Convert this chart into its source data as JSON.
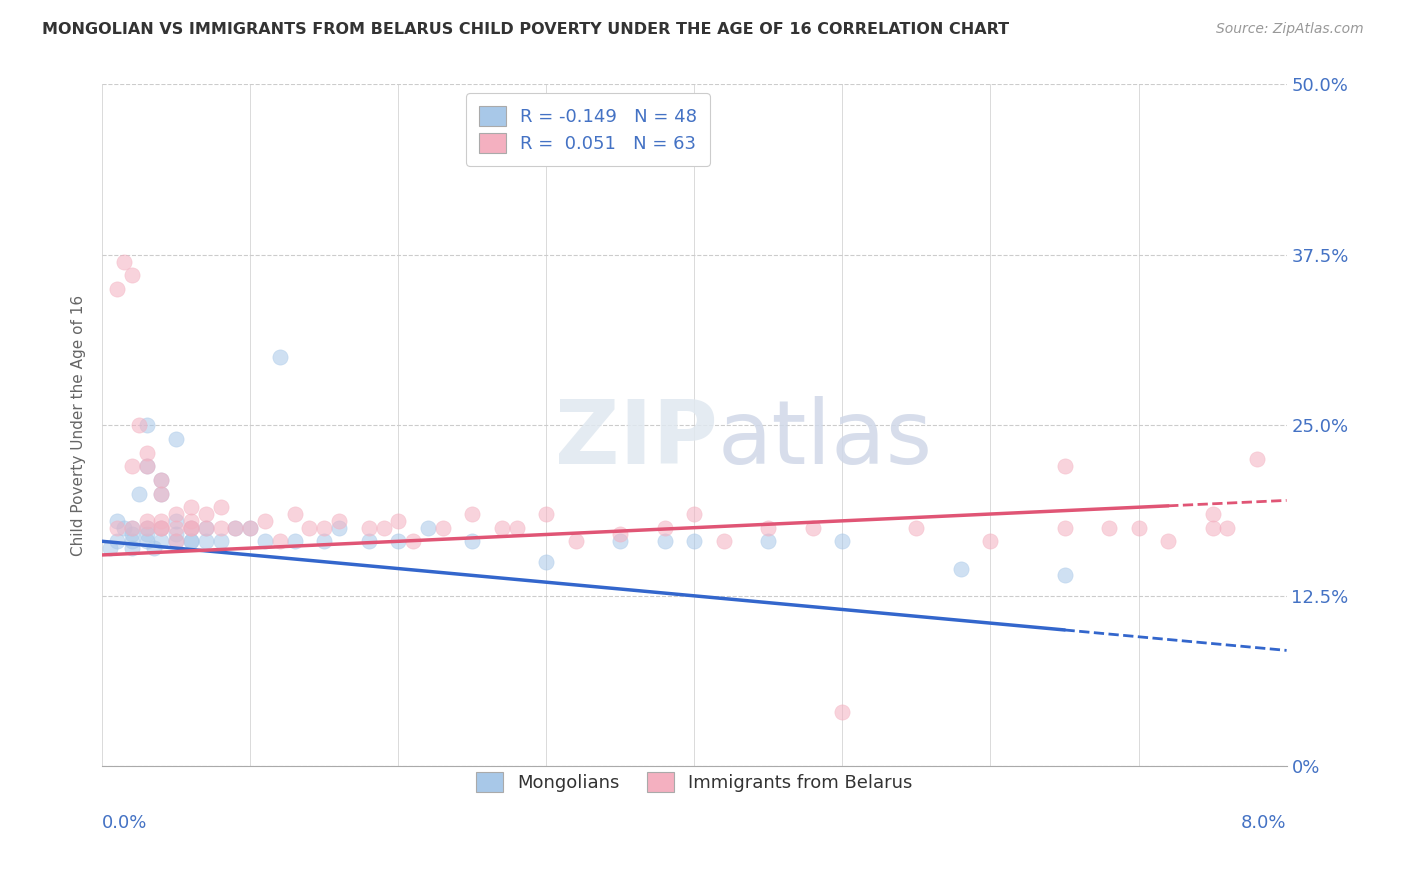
{
  "title": "MONGOLIAN VS IMMIGRANTS FROM BELARUS CHILD POVERTY UNDER THE AGE OF 16 CORRELATION CHART",
  "source": "Source: ZipAtlas.com",
  "ylabel": "Child Poverty Under the Age of 16",
  "ytick_labels": [
    "0%",
    "12.5%",
    "25.0%",
    "37.5%",
    "50.0%"
  ],
  "ytick_values": [
    0,
    12.5,
    25.0,
    37.5,
    50.0
  ],
  "xmin": 0.0,
  "xmax": 8.0,
  "ymin": 0.0,
  "ymax": 50.0,
  "legend_r1": "R = -0.149   N = 48",
  "legend_r2": "R =  0.051   N = 63",
  "legend_label1": "Mongolians",
  "legend_label2": "Immigrants from Belarus",
  "color_blue": "#a8c8e8",
  "color_pink": "#f4b0c0",
  "trend_blue_color": "#3366cc",
  "trend_pink_color": "#e05575",
  "trend_blue_x0": 0.0,
  "trend_blue_y0": 16.5,
  "trend_blue_x1": 8.0,
  "trend_blue_y1": 8.5,
  "trend_blue_solid_end": 6.5,
  "trend_pink_x0": 0.0,
  "trend_pink_y0": 15.5,
  "trend_pink_x1": 8.0,
  "trend_pink_y1": 19.5,
  "trend_pink_solid_end": 7.2,
  "mongolian_x": [
    0.05,
    0.1,
    0.1,
    0.15,
    0.2,
    0.2,
    0.2,
    0.2,
    0.25,
    0.3,
    0.3,
    0.3,
    0.3,
    0.3,
    0.35,
    0.4,
    0.4,
    0.4,
    0.4,
    0.5,
    0.5,
    0.5,
    0.5,
    0.6,
    0.6,
    0.6,
    0.7,
    0.7,
    0.8,
    0.9,
    1.0,
    1.1,
    1.2,
    1.3,
    1.5,
    1.6,
    1.8,
    2.0,
    2.2,
    2.5,
    3.0,
    3.5,
    3.8,
    4.0,
    4.5,
    5.0,
    5.8,
    6.5
  ],
  "mongolian_y": [
    16.0,
    16.5,
    18.0,
    17.5,
    16.0,
    16.5,
    17.0,
    17.5,
    20.0,
    16.5,
    17.0,
    17.5,
    22.0,
    25.0,
    16.0,
    20.0,
    21.0,
    16.5,
    17.5,
    18.0,
    16.5,
    17.0,
    24.0,
    16.5,
    17.5,
    16.5,
    16.5,
    17.5,
    16.5,
    17.5,
    17.5,
    16.5,
    30.0,
    16.5,
    16.5,
    17.5,
    16.5,
    16.5,
    17.5,
    16.5,
    15.0,
    16.5,
    16.5,
    16.5,
    16.5,
    16.5,
    14.5,
    14.0
  ],
  "belarus_x": [
    0.1,
    0.1,
    0.15,
    0.2,
    0.2,
    0.2,
    0.25,
    0.3,
    0.3,
    0.3,
    0.3,
    0.4,
    0.4,
    0.4,
    0.4,
    0.4,
    0.5,
    0.5,
    0.5,
    0.6,
    0.6,
    0.6,
    0.6,
    0.7,
    0.7,
    0.8,
    0.8,
    0.9,
    1.0,
    1.1,
    1.2,
    1.3,
    1.4,
    1.5,
    1.6,
    1.8,
    1.9,
    2.0,
    2.1,
    2.3,
    2.5,
    2.7,
    2.8,
    3.0,
    3.2,
    3.5,
    3.8,
    4.0,
    4.2,
    4.5,
    4.8,
    5.0,
    5.5,
    6.0,
    6.5,
    6.5,
    6.8,
    7.0,
    7.2,
    7.5,
    7.5,
    7.6,
    7.8
  ],
  "belarus_y": [
    17.5,
    35.0,
    37.0,
    36.0,
    22.0,
    17.5,
    25.0,
    17.5,
    18.0,
    22.0,
    23.0,
    17.5,
    18.0,
    20.0,
    21.0,
    17.5,
    17.5,
    18.5,
    16.5,
    17.5,
    18.0,
    19.0,
    17.5,
    17.5,
    18.5,
    19.0,
    17.5,
    17.5,
    17.5,
    18.0,
    16.5,
    18.5,
    17.5,
    17.5,
    18.0,
    17.5,
    17.5,
    18.0,
    16.5,
    17.5,
    18.5,
    17.5,
    17.5,
    18.5,
    16.5,
    17.0,
    17.5,
    18.5,
    16.5,
    17.5,
    17.5,
    4.0,
    17.5,
    16.5,
    17.5,
    22.0,
    17.5,
    17.5,
    16.5,
    17.5,
    18.5,
    17.5,
    22.5
  ],
  "watermark_zip": "ZIP",
  "watermark_atlas": "atlas",
  "title_fontsize": 11.5,
  "source_fontsize": 10,
  "tick_label_fontsize": 13,
  "legend_fontsize": 13,
  "ylabel_fontsize": 11,
  "scatter_size": 120,
  "scatter_alpha": 0.55
}
